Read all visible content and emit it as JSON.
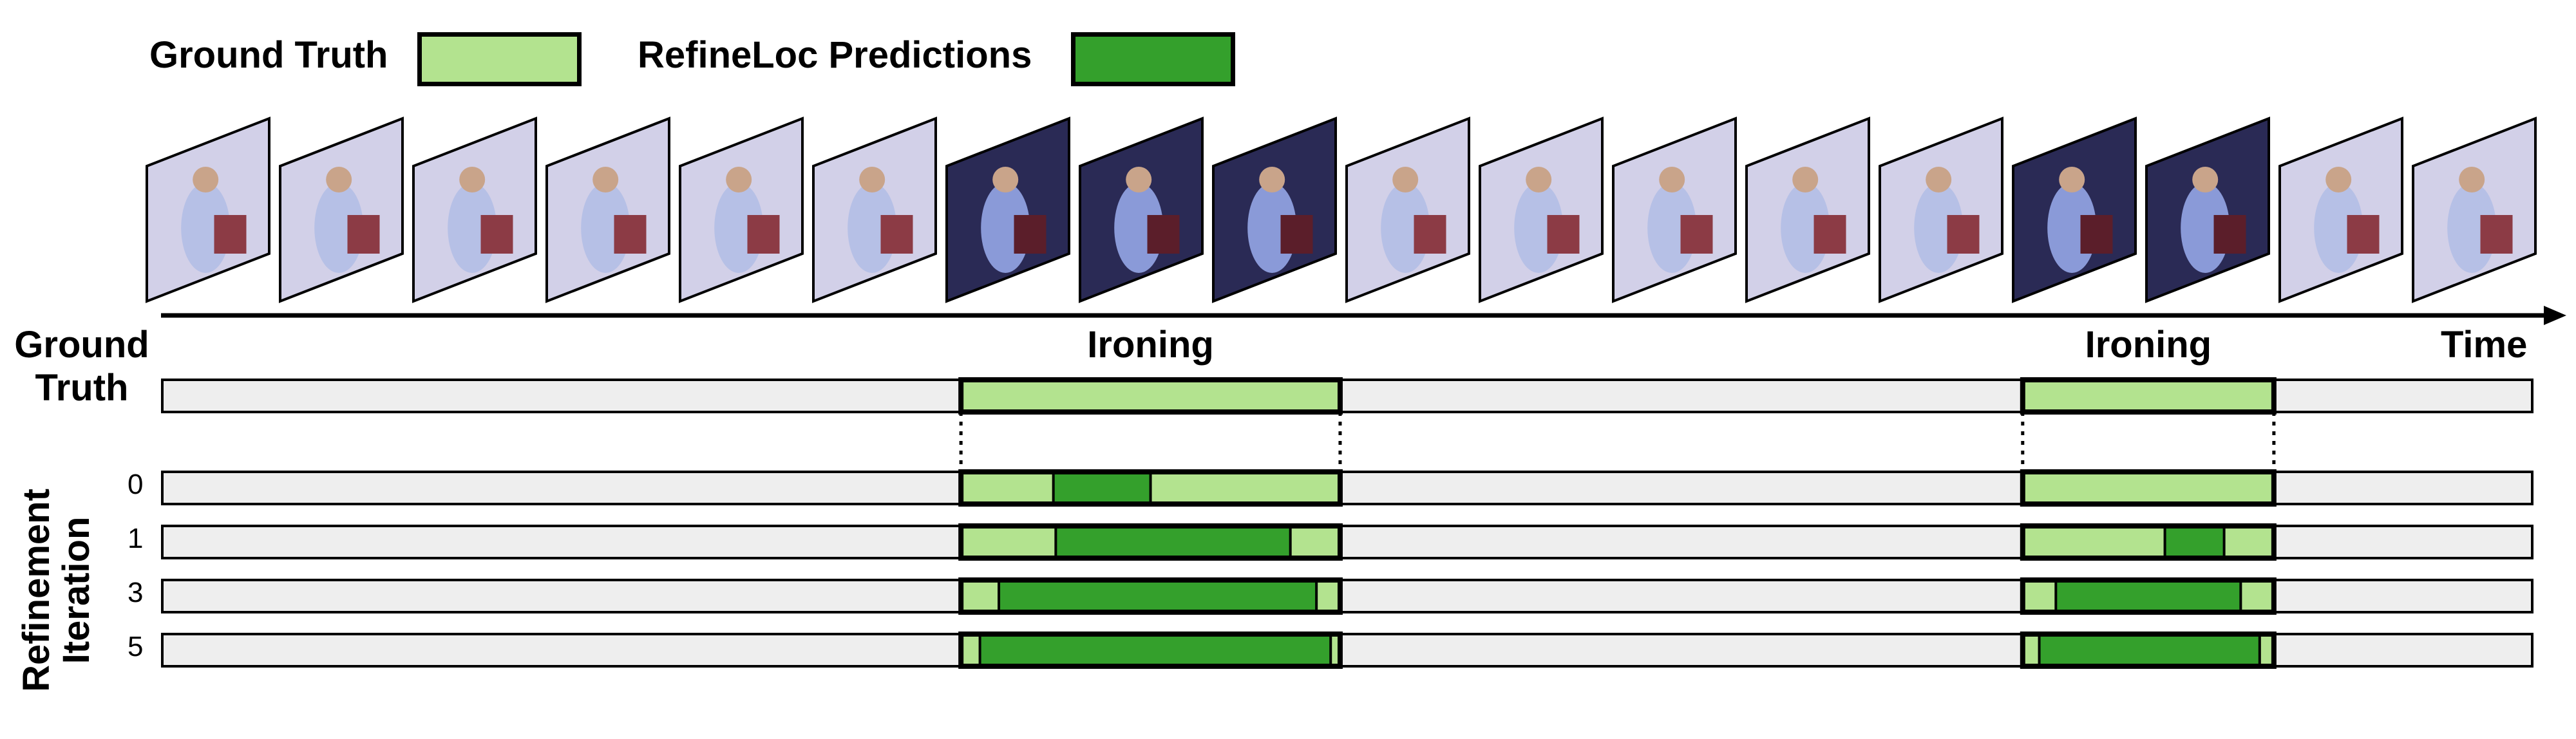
{
  "legend": {
    "ground_truth_label": "Ground Truth",
    "predictions_label": "RefineLoc Predictions"
  },
  "colors": {
    "ground_truth": "#b3e38f",
    "prediction": "#34a02c",
    "track": "#eeeeee",
    "frame_light": "#d2d0e8",
    "frame_dark": "#2a2a55"
  },
  "timeline": {
    "time_label": "Time",
    "frame_count": 18,
    "segments": [
      {
        "label": "Ironing",
        "start": 0.337,
        "end": 0.497
      },
      {
        "label": "Ironing",
        "start": 0.785,
        "end": 0.891
      }
    ]
  },
  "ground_truth_row": {
    "label_line1": "Ground",
    "label_line2": "Truth"
  },
  "refinement": {
    "axis_label_line1": "Refinement",
    "axis_label_line2": "Iteration",
    "rows": [
      {
        "iteration": "0",
        "predictions": [
          {
            "start": 0.376,
            "end": 0.417
          }
        ]
      },
      {
        "iteration": "1",
        "predictions": [
          {
            "start": 0.377,
            "end": 0.476
          },
          {
            "start": 0.845,
            "end": 0.87
          }
        ]
      },
      {
        "iteration": "3",
        "predictions": [
          {
            "start": 0.353,
            "end": 0.487
          },
          {
            "start": 0.799,
            "end": 0.877
          }
        ]
      },
      {
        "iteration": "5",
        "predictions": [
          {
            "start": 0.345,
            "end": 0.493
          },
          {
            "start": 0.792,
            "end": 0.885
          }
        ]
      }
    ]
  }
}
